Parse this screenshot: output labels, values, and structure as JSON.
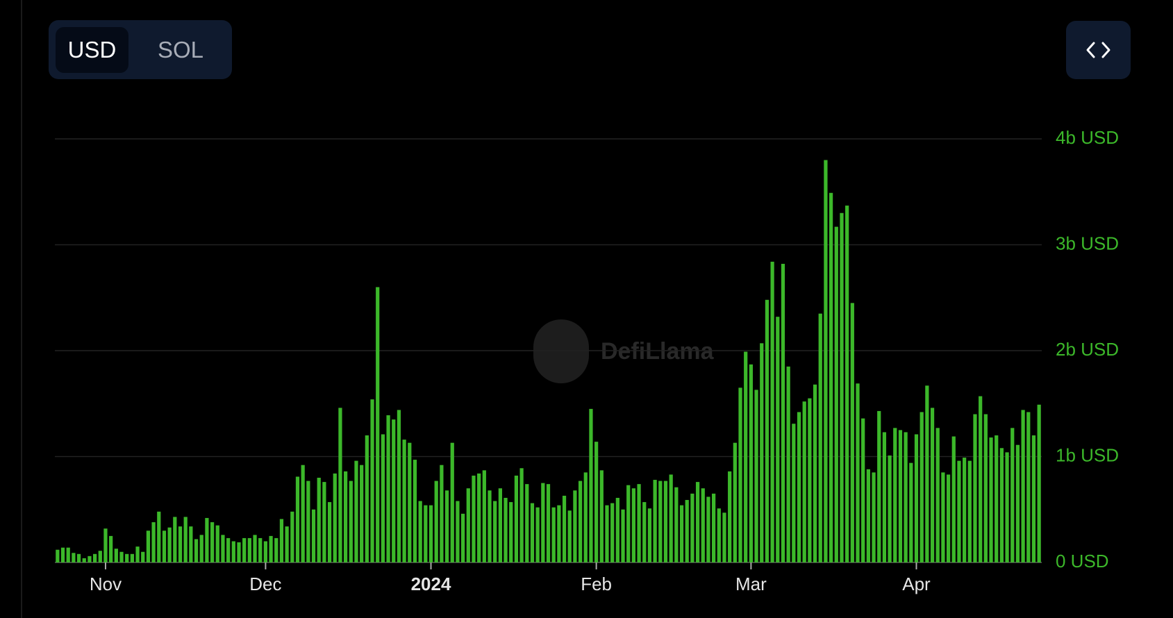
{
  "toggle": {
    "options": [
      "USD",
      "SOL"
    ]
  },
  "watermark": "DefiLlama",
  "chart_data": {
    "type": "bar",
    "categories": [
      null,
      null,
      null,
      null,
      null,
      null,
      null,
      null,
      null,
      "Nov",
      null,
      null,
      null,
      null,
      null,
      null,
      null,
      null,
      null,
      null,
      null,
      null,
      null,
      null,
      null,
      null,
      null,
      null,
      null,
      null,
      null,
      null,
      null,
      null,
      null,
      null,
      null,
      null,
      null,
      "Dec",
      null,
      null,
      null,
      null,
      null,
      null,
      null,
      null,
      null,
      null,
      null,
      null,
      null,
      null,
      null,
      null,
      null,
      null,
      null,
      null,
      null,
      null,
      null,
      null,
      null,
      null,
      null,
      null,
      null,
      null,
      "2024",
      null,
      null,
      null,
      null,
      null,
      null,
      null,
      null,
      null,
      null,
      null,
      null,
      null,
      null,
      null,
      null,
      null,
      null,
      null,
      null,
      null,
      null,
      null,
      null,
      null,
      null,
      null,
      null,
      null,
      null,
      "Feb",
      null,
      null,
      null,
      null,
      null,
      null,
      null,
      null,
      null,
      null,
      null,
      null,
      null,
      null,
      null,
      null,
      null,
      null,
      null,
      null,
      null,
      null,
      null,
      null,
      null,
      null,
      null,
      null,
      "Mar",
      null,
      null,
      null,
      null,
      null,
      null,
      null,
      null,
      null,
      null,
      null,
      null,
      null,
      null,
      null,
      null,
      null,
      null,
      null,
      null,
      null,
      null,
      null,
      null,
      null,
      null,
      null,
      null,
      null,
      null,
      "Apr",
      null,
      null,
      null,
      null,
      null,
      null,
      null,
      null,
      null,
      null,
      null,
      null,
      null,
      null,
      null,
      null,
      null,
      null,
      null,
      null,
      null,
      null,
      null
    ],
    "values": [
      120000000.0,
      140000000.0,
      140000000.0,
      90000000.0,
      80000000.0,
      40000000.0,
      60000000.0,
      80000000.0,
      110000000.0,
      320000000.0,
      250000000.0,
      130000000.0,
      100000000.0,
      80000000.0,
      80000000.0,
      150000000.0,
      100000000.0,
      300000000.0,
      380000000.0,
      480000000.0,
      300000000.0,
      330000000.0,
      430000000.0,
      340000000.0,
      430000000.0,
      340000000.0,
      220000000.0,
      260000000.0,
      420000000.0,
      380000000.0,
      350000000.0,
      260000000.0,
      230000000.0,
      200000000.0,
      190000000.0,
      230000000.0,
      230000000.0,
      260000000.0,
      230000000.0,
      200000000.0,
      250000000.0,
      230000000.0,
      410000000.0,
      340000000.0,
      480000000.0,
      810000000.0,
      920000000.0,
      770000000.0,
      500000000.0,
      800000000.0,
      760000000.0,
      570000000.0,
      840000000.0,
      1460000000.0,
      860000000.0,
      770000000.0,
      960000000.0,
      920000000.0,
      1200000000.0,
      1540000000.0,
      2600000000.0,
      1210000000.0,
      1390000000.0,
      1350000000.0,
      1440000000.0,
      1160000000.0,
      1130000000.0,
      970000000.0,
      580000000.0,
      540000000.0,
      540000000.0,
      770000000.0,
      920000000.0,
      680000000.0,
      1130000000.0,
      580000000.0,
      460000000.0,
      700000000.0,
      820000000.0,
      840000000.0,
      870000000.0,
      680000000.0,
      580000000.0,
      700000000.0,
      610000000.0,
      570000000.0,
      820000000.0,
      890000000.0,
      740000000.0,
      560000000.0,
      520000000.0,
      750000000.0,
      740000000.0,
      520000000.0,
      540000000.0,
      630000000.0,
      490000000.0,
      680000000.0,
      770000000.0,
      850000000.0,
      1450000000.0,
      1140000000.0,
      870000000.0,
      540000000.0,
      560000000.0,
      610000000.0,
      500000000.0,
      730000000.0,
      700000000.0,
      740000000.0,
      570000000.0,
      510000000.0,
      780000000.0,
      770000000.0,
      770000000.0,
      830000000.0,
      710000000.0,
      540000000.0,
      590000000.0,
      650000000.0,
      760000000.0,
      700000000.0,
      620000000.0,
      650000000.0,
      510000000.0,
      470000000.0,
      860000000.0,
      1130000000.0,
      1650000000.0,
      1990000000.0,
      1870000000.0,
      1630000000.0,
      2070000000.0,
      2480000000.0,
      2840000000.0,
      2320000000.0,
      2820000000.0,
      1850000000.0,
      1310000000.0,
      1420000000.0,
      1520000000.0,
      1550000000.0,
      1680000000.0,
      2350000000.0,
      3800000000.0,
      3490000000.0,
      3170000000.0,
      3300000000.0,
      3370000000.0,
      2450000000.0,
      1690000000.0,
      1360000000.0,
      880000000.0,
      850000000.0,
      1430000000.0,
      1230000000.0,
      1010000000.0,
      1270000000.0,
      1250000000.0,
      1230000000.0,
      940000000.0,
      1210000000.0,
      1420000000.0,
      1670000000.0,
      1460000000.0,
      1270000000.0,
      850000000.0,
      830000000.0,
      1190000000.0,
      960000000.0,
      990000000.0,
      960000000.0,
      1400000000.0,
      1570000000.0,
      1400000000.0,
      1180000000.0,
      1200000000.0,
      1080000000.0,
      1040000000.0,
      1270000000.0,
      1110000000.0,
      1440000000.0,
      1420000000.0,
      1200000000.0,
      1490000000.0
    ],
    "color": "#3cb82a",
    "ylim": [
      0,
      4000000000.0
    ],
    "yticks": [
      {
        "value": 0,
        "label": "0 USD"
      },
      {
        "value": 1000000000.0,
        "label": "1b USD"
      },
      {
        "value": 2000000000.0,
        "label": "2b USD"
      },
      {
        "value": 3000000000.0,
        "label": "3b USD"
      },
      {
        "value": 4000000000.0,
        "label": "4b USD"
      }
    ],
    "grid": true
  }
}
